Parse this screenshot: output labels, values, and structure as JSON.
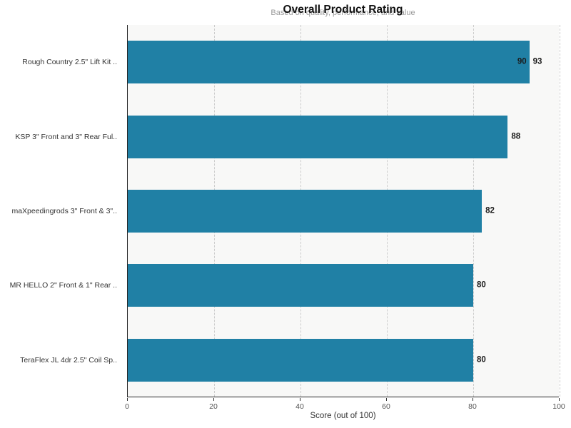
{
  "header": {
    "title": "Overall Product Rating",
    "subtitle": "Based on quality, performance, and value"
  },
  "chart_data": {
    "type": "bar",
    "orientation": "horizontal",
    "title": "Overall Product Rating",
    "subtitle": "Based on quality, performance, and value",
    "xlabel": "Score (out of 100)",
    "ylabel": "",
    "xlim": [
      0,
      100
    ],
    "xticks": [
      0,
      20,
      40,
      60,
      80,
      100
    ],
    "grid": "vertical-dashed",
    "legend": "none",
    "bar_color": "#2080A5",
    "plot_background": "#f8f8f7",
    "categories": [
      "Rough Country 2.5\" Lift Kit ..",
      "KSP 3\" Front and 3\" Rear Ful..",
      "maXpeedingrods 3\" Front & 3\"..",
      "MR HELLO 2\" Front & 1\" Rear ..",
      "TeraFlex JL 4dr 2.5\" Coil Sp.."
    ],
    "values": [
      93,
      88,
      82,
      80,
      80
    ],
    "bar_labels": [
      "93",
      "88",
      "82",
      "80",
      "80"
    ],
    "inner_labels": [
      "90",
      "",
      "",
      "",
      ""
    ]
  }
}
